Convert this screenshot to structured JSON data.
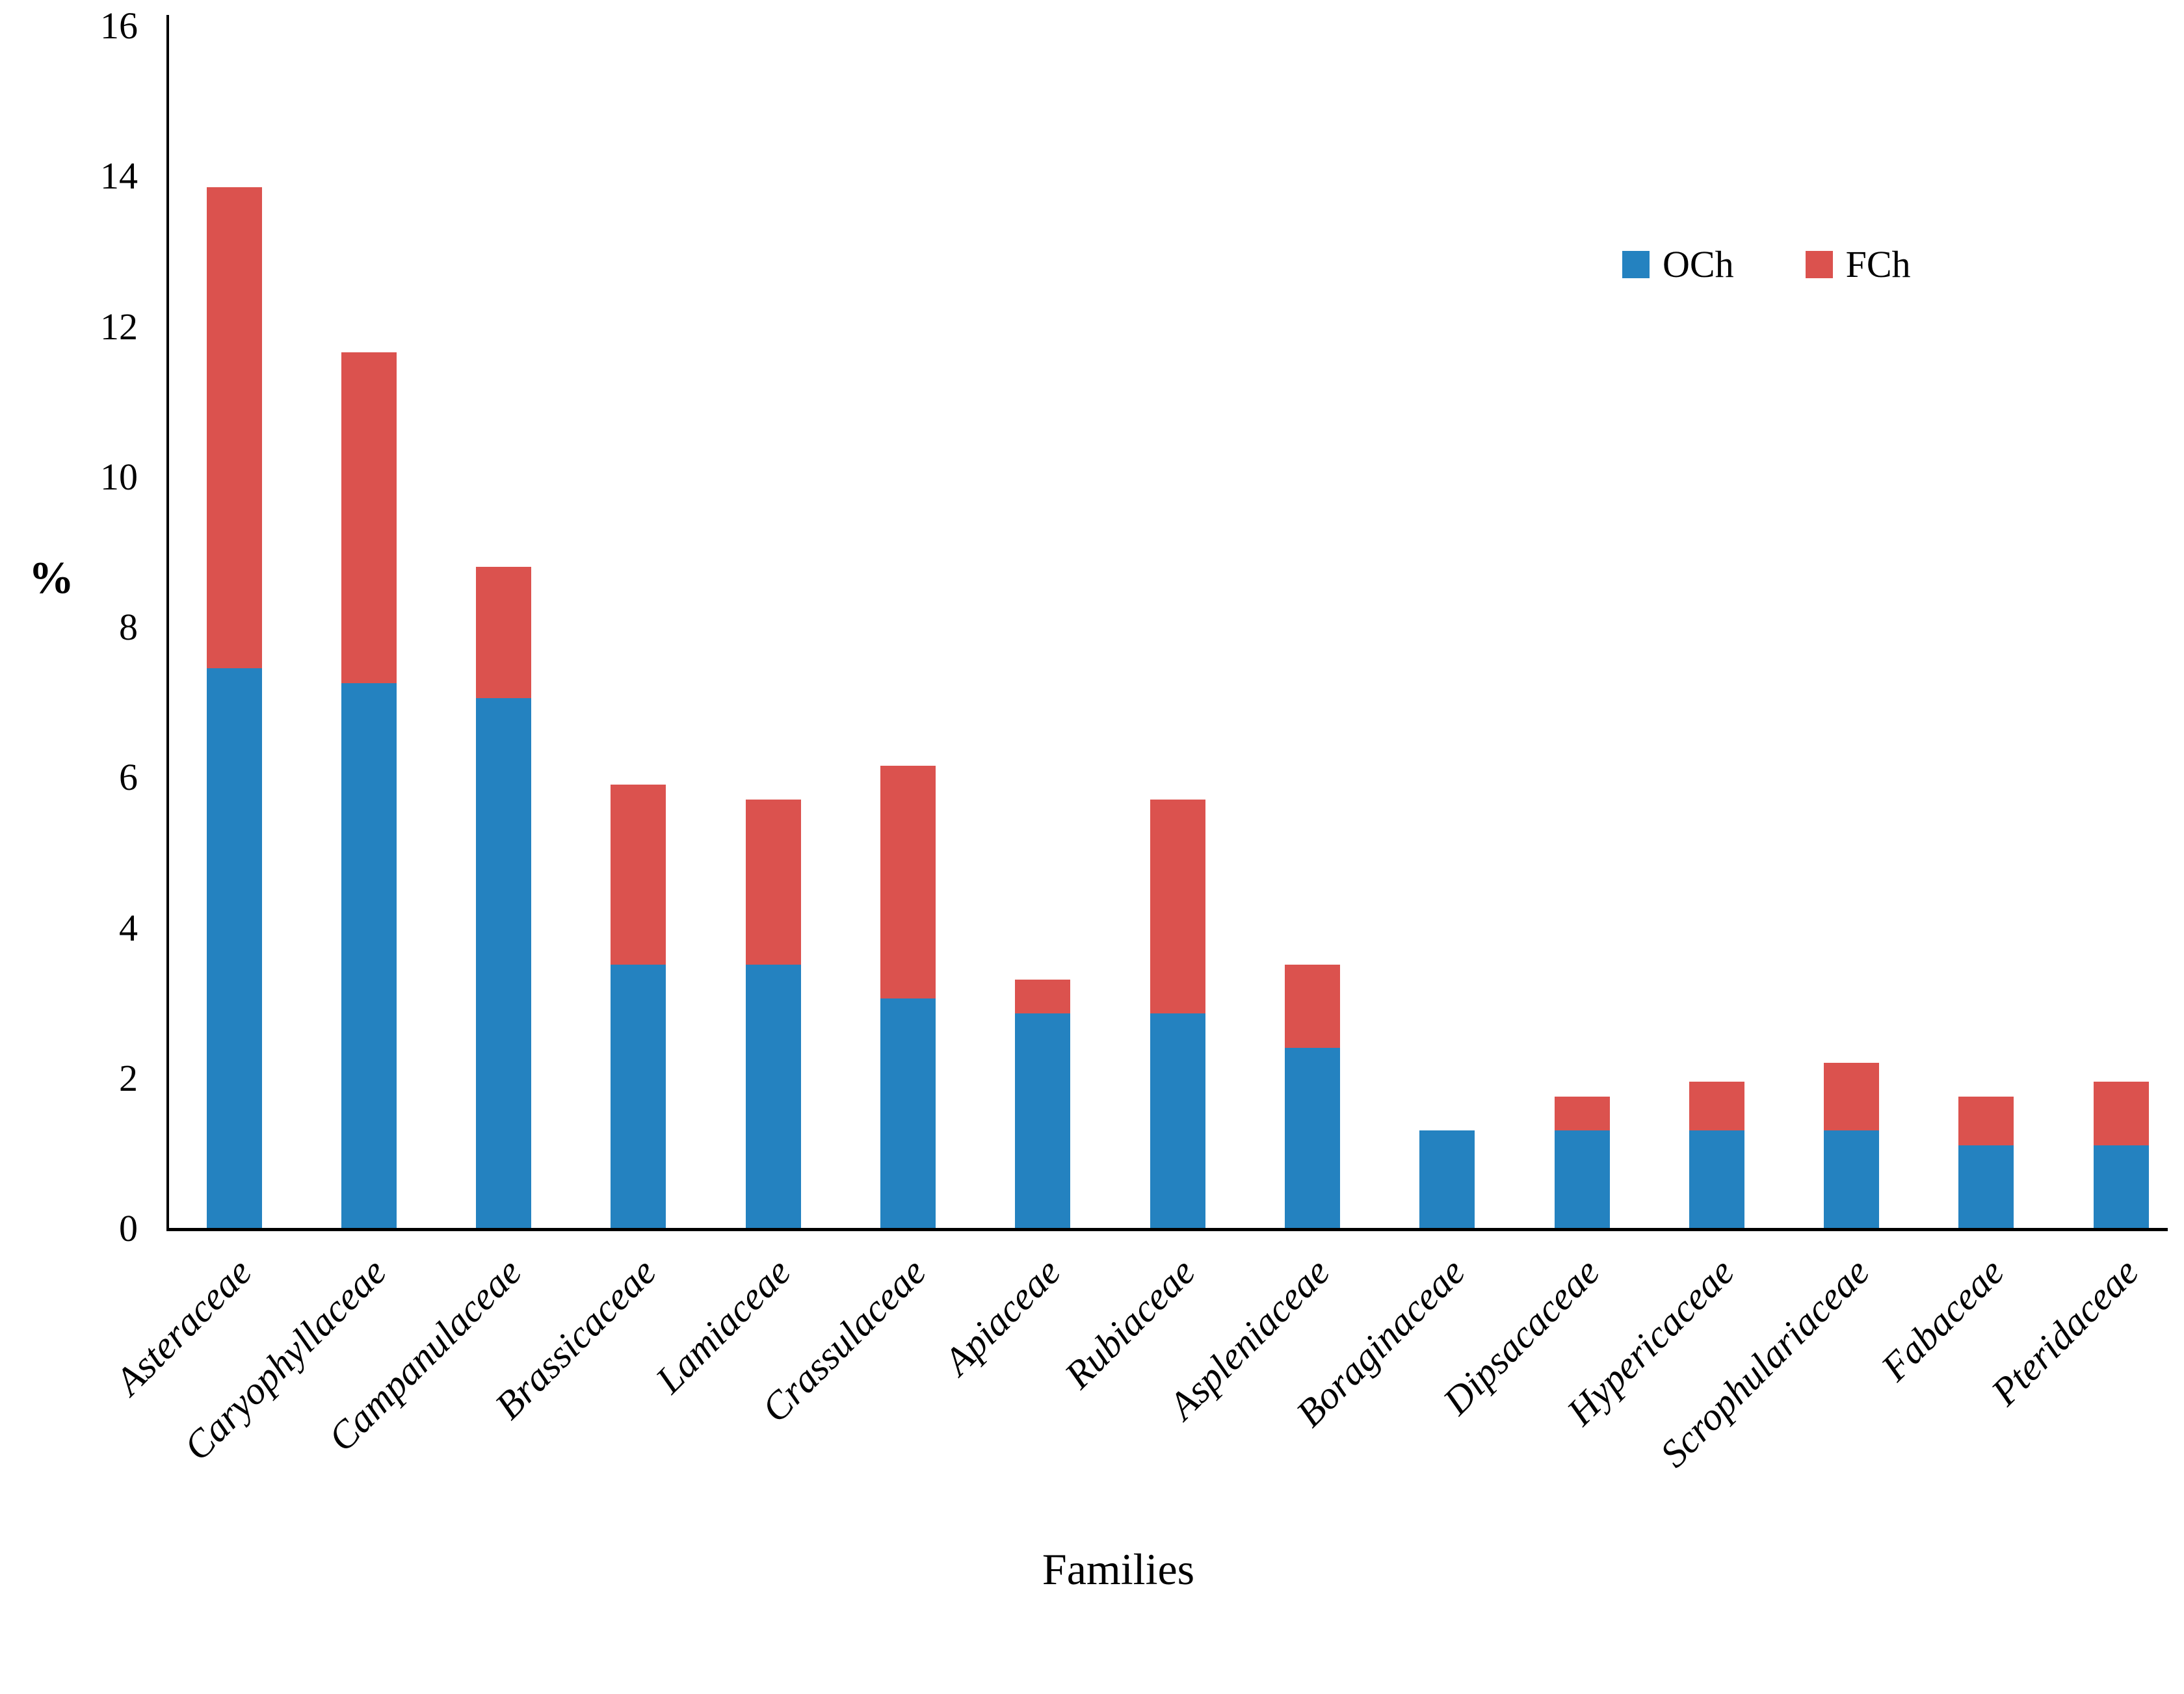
{
  "chart_data": {
    "type": "bar",
    "stacked": true,
    "title": "",
    "xlabel": "Families",
    "ylabel": "%",
    "ylim": [
      0,
      16
    ],
    "y_ticks": [
      0,
      2,
      4,
      6,
      8,
      10,
      12,
      14,
      16
    ],
    "grid": false,
    "legend_position": "top-right",
    "categories": [
      "Asteraceae",
      "Caryophyllaceae",
      "Campanulaceae",
      "Brassicaceae",
      "Lamiaceae",
      "Crassulaceae",
      "Apiaceae",
      "Rubiaceae",
      "Aspleniaceae",
      "Boraginaceae",
      "Dipsacaceae",
      "Hypericaceae",
      "Scrophulariaceae",
      "Fabaceae",
      "Pteridaceae"
    ],
    "series": [
      {
        "name": "OCh",
        "color": "#2482C0",
        "values": [
          7.45,
          7.25,
          7.05,
          3.5,
          3.5,
          3.05,
          2.85,
          2.85,
          2.4,
          1.3,
          1.3,
          1.3,
          1.3,
          1.1,
          1.1
        ]
      },
      {
        "name": "FCh",
        "color": "#DB524E",
        "values": [
          6.4,
          4.4,
          1.75,
          2.4,
          2.2,
          3.1,
          0.45,
          2.85,
          1.1,
          0.0,
          0.45,
          0.65,
          0.9,
          0.65,
          0.85
        ]
      }
    ],
    "totals": [
      13.85,
      11.65,
      8.8,
      5.9,
      5.7,
      6.15,
      3.3,
      5.7,
      3.5,
      1.3,
      1.75,
      1.95,
      2.2,
      1.75,
      1.95
    ]
  }
}
